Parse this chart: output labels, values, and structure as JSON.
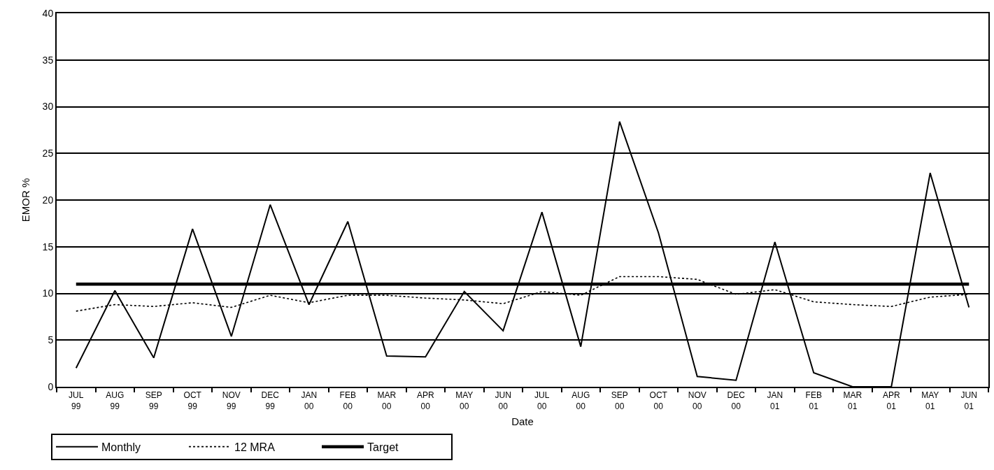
{
  "chart_data": {
    "type": "line",
    "xlabel": "Date",
    "ylabel": "EMOR %",
    "categories": [
      "JUL 99",
      "AUG 99",
      "SEP 99",
      "OCT 99",
      "NOV 99",
      "DEC 99",
      "JAN 00",
      "FEB 00",
      "MAR 00",
      "APR 00",
      "MAY 00",
      "JUN 00",
      "JUL 00",
      "AUG 00",
      "SEP 00",
      "OCT 00",
      "NOV 00",
      "DEC 00",
      "JAN 01",
      "FEB 01",
      "MAR 01",
      "APR 01",
      "MAY 01",
      "JUN 01"
    ],
    "series": [
      {
        "name": "Monthly",
        "color": "#000000",
        "line_style": "solid",
        "values": [
          2.0,
          10.3,
          3.1,
          16.9,
          5.4,
          19.5,
          8.8,
          17.7,
          3.3,
          3.2,
          10.2,
          6.0,
          18.7,
          4.3,
          28.4,
          16.5,
          1.1,
          0.7,
          15.5,
          1.5,
          0,
          0,
          22.9,
          8.5
        ]
      },
      {
        "name": "12 MRA",
        "color": "#000000",
        "line_style": "dotted",
        "values": [
          8.1,
          8.8,
          8.6,
          9.0,
          8.5,
          9.8,
          9.0,
          9.8,
          9.8,
          9.5,
          9.3,
          8.9,
          10.2,
          9.8,
          11.8,
          11.8,
          11.5,
          9.9,
          10.4,
          9.1,
          8.8,
          8.6,
          9.6,
          9.9
        ]
      },
      {
        "name": "Target",
        "color": "#000000",
        "line_style": "solid",
        "values": [
          11,
          11,
          11,
          11,
          11,
          11,
          11,
          11,
          11,
          11,
          11,
          11,
          11,
          11,
          11,
          11,
          11,
          11,
          11,
          11,
          11,
          11,
          11,
          11
        ]
      }
    ],
    "ylim": [
      0,
      40
    ],
    "yticks": [
      0,
      5,
      10,
      15,
      20,
      25,
      30,
      35,
      40
    ],
    "grid": "y",
    "legend": "bottom left"
  }
}
